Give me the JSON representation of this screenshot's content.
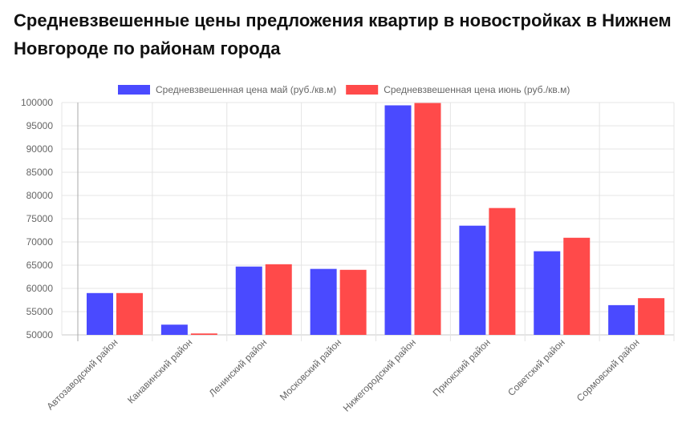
{
  "chart_data": {
    "type": "bar",
    "title": "Средневзвешенные цены предложения квартир в новостройках в Нижнем Новгороде по районам города",
    "categories": [
      "Автозаводский район",
      "Канавинский район",
      "Ленинский район",
      "Московский район",
      "Нижегородский район",
      "Приокский район",
      "Советский район",
      "Сормовский район"
    ],
    "series": [
      {
        "name": "Средневзвешенная цена май (руб./кв.м)",
        "color": "#4a4aff",
        "values": [
          59000,
          52200,
          64700,
          64200,
          99400,
          73500,
          68000,
          56400
        ]
      },
      {
        "name": "Средневзвешенная цена июнь (руб./кв.м)",
        "color": "#ff4a4a",
        "values": [
          59000,
          50300,
          65200,
          64000,
          99900,
          77300,
          70900,
          57900
        ]
      }
    ],
    "ylim": [
      50000,
      100000
    ],
    "yticks": [
      50000,
      55000,
      60000,
      65000,
      70000,
      75000,
      80000,
      85000,
      90000,
      95000,
      100000
    ],
    "grid": true,
    "legend": "top"
  }
}
